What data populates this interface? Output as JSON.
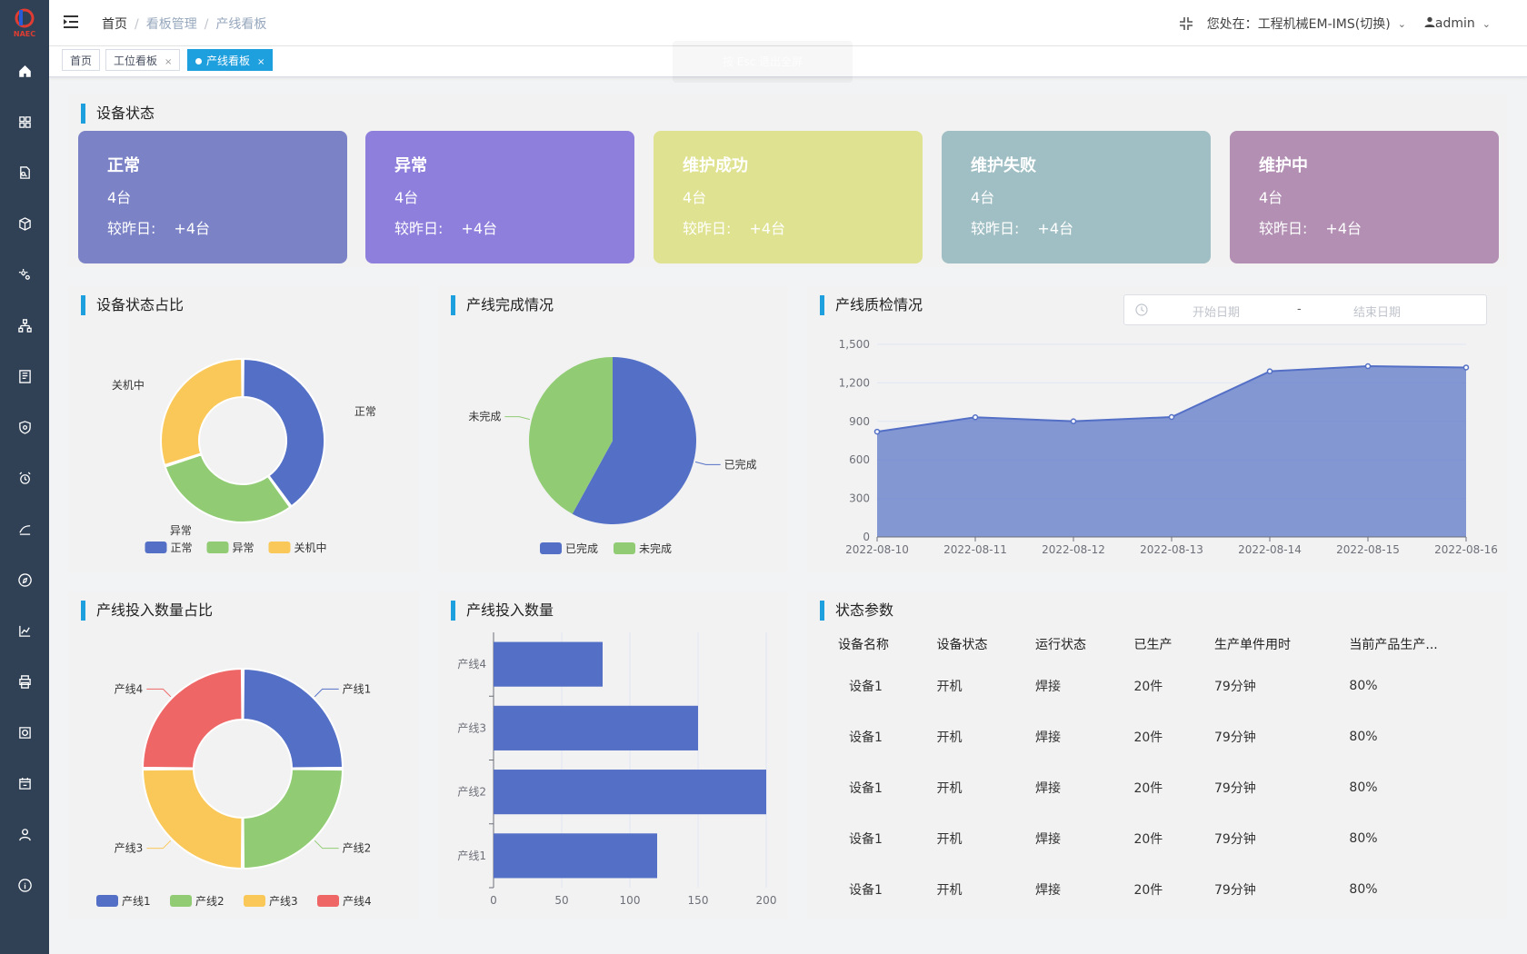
{
  "header": {
    "breadcrumb": [
      "首页",
      "看板管理",
      "产线看板"
    ],
    "location_prefix": "您处在：",
    "location": "工程机械EM-IMS(切换)",
    "user": "admin"
  },
  "logo": {
    "text": "NAEC"
  },
  "tags": [
    {
      "label": "首页"
    },
    {
      "label": "工位看板",
      "close": "×"
    },
    {
      "label": "产线看板",
      "close": "×"
    }
  ],
  "toast": {
    "text": "按 Esc 退出全屏"
  },
  "device_status": {
    "title": "设备状态",
    "diff_label": "较昨日:",
    "cards": [
      {
        "name": "正常",
        "count": "4台",
        "diff": "+4台",
        "color": "#7b82c6"
      },
      {
        "name": "异常",
        "count": "4台",
        "diff": "+4台",
        "color": "#8f7fdc"
      },
      {
        "name": "维护成功",
        "count": "4台",
        "diff": "+4台",
        "color": "#dfe290"
      },
      {
        "name": "维护失败",
        "count": "4台",
        "diff": "+4台",
        "color": "#a0bfc4"
      },
      {
        "name": "维护中",
        "count": "4台",
        "diff": "+4台",
        "color": "#b28fb3"
      }
    ]
  },
  "panels": {
    "status_ratio": "设备状态占比",
    "line_completion": "产线完成情况",
    "quality": "产线质检情况",
    "input_ratio": "产线投入数量占比",
    "input_count": "产线投入数量",
    "params": "状态参数"
  },
  "daterange": {
    "start_placeholder": "开始日期",
    "separator": "-",
    "end_placeholder": "结束日期"
  },
  "chart_data": [
    {
      "type": "pie",
      "variant": "donut",
      "categories": [
        "正常",
        "异常",
        "关机中"
      ],
      "values": [
        40,
        30,
        30
      ],
      "colors": [
        "#5470c6",
        "#91cc75",
        "#fac858"
      ],
      "legend_position": "bottom"
    },
    {
      "type": "pie",
      "categories": [
        "已完成",
        "未完成"
      ],
      "values": [
        58,
        42
      ],
      "colors": [
        "#5470c6",
        "#91cc75"
      ],
      "legend_position": "bottom"
    },
    {
      "type": "area",
      "x": [
        "2022-08-10",
        "2022-08-11",
        "2022-08-12",
        "2022-08-13",
        "2022-08-14",
        "2022-08-15",
        "2022-08-16"
      ],
      "values": [
        820,
        932,
        901,
        934,
        1290,
        1330,
        1320
      ],
      "ylim": [
        0,
        1500
      ],
      "yticks": [
        "0",
        "300",
        "600",
        "900",
        "1,200",
        "1,500"
      ],
      "color": "#5470c6",
      "grid": true
    },
    {
      "type": "pie",
      "variant": "rose-donut",
      "categories": [
        "产线1",
        "产线2",
        "产线3",
        "产线4"
      ],
      "values": [
        25,
        25,
        25,
        25
      ],
      "colors": [
        "#5470c6",
        "#91cc75",
        "#fac858",
        "#ee6666"
      ],
      "legend_position": "bottom"
    },
    {
      "type": "bar",
      "orientation": "horizontal",
      "categories": [
        "产线1",
        "产线2",
        "产线3",
        "产线4"
      ],
      "values": [
        120,
        200,
        150,
        80
      ],
      "xlim": [
        0,
        200
      ],
      "xticks": [
        "0",
        "50",
        "100",
        "150",
        "200"
      ],
      "color": "#5470c6",
      "grid": true
    }
  ],
  "params_table": {
    "headers": [
      "设备名称",
      "设备状态",
      "运行状态",
      "已生产",
      "生产单件用时",
      "当前产品生产..."
    ],
    "rows": [
      [
        "设备1",
        "开机",
        "焊接",
        "20件",
        "79分钟",
        "80%"
      ],
      [
        "设备1",
        "开机",
        "焊接",
        "20件",
        "79分钟",
        "80%"
      ],
      [
        "设备1",
        "开机",
        "焊接",
        "20件",
        "79分钟",
        "80%"
      ],
      [
        "设备1",
        "开机",
        "焊接",
        "20件",
        "79分钟",
        "80%"
      ],
      [
        "设备1",
        "开机",
        "焊接",
        "20件",
        "79分钟",
        "80%"
      ]
    ]
  },
  "sidebar": {
    "icons": [
      "home-icon",
      "dashboard-icon",
      "document-search-icon",
      "box-icon",
      "gears-icon",
      "org-tree-icon",
      "report-icon",
      "shield-icon",
      "alarm-clock-icon",
      "tool-icon",
      "compass-icon",
      "trend-chart-icon",
      "printer-icon",
      "disk-icon",
      "calendar-icon",
      "user-icon",
      "info-icon"
    ]
  }
}
